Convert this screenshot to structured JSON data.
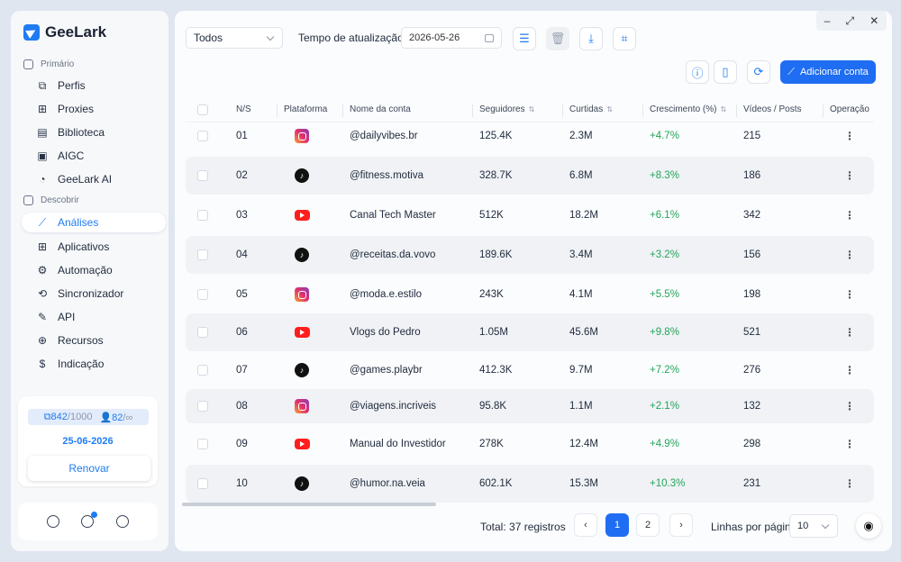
{
  "app": {
    "name": "GeeLark"
  },
  "sidebar": {
    "section_primary": "Primário",
    "primary_items": [
      {
        "label": "Perfis",
        "icon": "profiles-icon"
      },
      {
        "label": "Proxies",
        "icon": "proxies-icon"
      },
      {
        "label": "Biblioteca",
        "icon": "library-icon"
      },
      {
        "label": "AIGC",
        "icon": "aigc-icon"
      },
      {
        "label": "GeeLark AI",
        "icon": "geelark-ai-icon"
      }
    ],
    "section_discover": "Descobrir",
    "discover_items": [
      {
        "label": "Análises",
        "icon": "analytics-icon",
        "active": true
      },
      {
        "label": "Aplicativos",
        "icon": "apps-icon"
      },
      {
        "label": "Automação",
        "icon": "automation-icon"
      },
      {
        "label": "Sincronizador",
        "icon": "sync-icon"
      },
      {
        "label": "API",
        "icon": "api-icon"
      },
      {
        "label": "Recursos",
        "icon": "resources-icon"
      },
      {
        "label": "Indicação",
        "icon": "referral-icon"
      }
    ],
    "quota": {
      "profiles_used": "842",
      "profiles_total": "/1000",
      "members_used": "82",
      "members_total": "/∞"
    },
    "expiry_date": "25-06-2026",
    "renew_label": "Renovar"
  },
  "toolbar": {
    "filter_value": "Todos",
    "update_label": "Tempo de atualização",
    "update_date": "2026-05-26",
    "add_account_label": "Adicionar conta"
  },
  "table": {
    "headers": {
      "ns": "N/S",
      "platform": "Plataforma",
      "account": "Nome da conta",
      "followers": "Seguidores",
      "likes": "Curtidas",
      "growth": "Crescimento (%)",
      "videos": "Vídeos / Posts",
      "operation": "Operação"
    },
    "rows": [
      {
        "ns": "01",
        "platform": "instagram",
        "account": "@dailyvibes.br",
        "followers": "125.4K",
        "likes": "2.3M",
        "growth": "+4.7%",
        "videos": "215"
      },
      {
        "ns": "02",
        "platform": "tiktok",
        "account": "@fitness.motiva",
        "followers": "328.7K",
        "likes": "6.8M",
        "growth": "+8.3%",
        "videos": "186"
      },
      {
        "ns": "03",
        "platform": "youtube",
        "account": "Canal Tech Master",
        "followers": "512K",
        "likes": "18.2M",
        "growth": "+6.1%",
        "videos": "342"
      },
      {
        "ns": "04",
        "platform": "tiktok",
        "account": "@receitas.da.vovo",
        "followers": "189.6K",
        "likes": "3.4M",
        "growth": "+3.2%",
        "videos": "156"
      },
      {
        "ns": "05",
        "platform": "instagram",
        "account": "@moda.e.estilo",
        "followers": "243K",
        "likes": "4.1M",
        "growth": "+5.5%",
        "videos": "198"
      },
      {
        "ns": "06",
        "platform": "youtube",
        "account": "Vlogs do Pedro",
        "followers": "1.05M",
        "likes": "45.6M",
        "growth": "+9.8%",
        "videos": "521"
      },
      {
        "ns": "07",
        "platform": "tiktok",
        "account": "@games.playbr",
        "followers": "412.3K",
        "likes": "9.7M",
        "growth": "+7.2%",
        "videos": "276"
      },
      {
        "ns": "08",
        "platform": "instagram",
        "account": "@viagens.incriveis",
        "followers": "95.8K",
        "likes": "1.1M",
        "growth": "+2.1%",
        "videos": "132"
      },
      {
        "ns": "09",
        "platform": "youtube",
        "account": "Manual do Investidor",
        "followers": "278K",
        "likes": "12.4M",
        "growth": "+4.9%",
        "videos": "298"
      },
      {
        "ns": "10",
        "platform": "tiktok",
        "account": "@humor.na.veia",
        "followers": "602.1K",
        "likes": "15.3M",
        "growth": "+10.3%",
        "videos": "231"
      }
    ]
  },
  "footer": {
    "total": "Total: 37 registros",
    "pages": [
      "1",
      "2"
    ],
    "current_page": "1",
    "rows_per_page_label": "Linhas por página",
    "rows_per_page": "10"
  }
}
